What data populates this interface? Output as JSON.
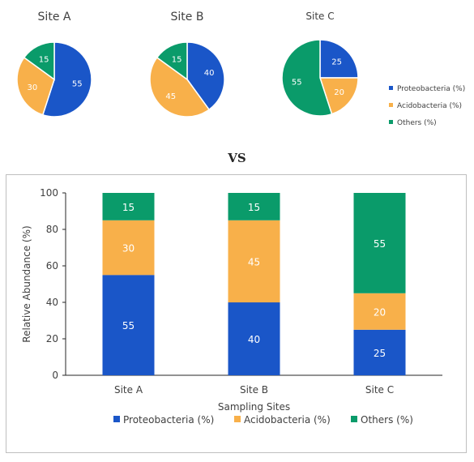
{
  "chart_data": [
    {
      "type": "pie",
      "title": "Site A",
      "labels": [
        "Proteobacteria (%)",
        "Acidobacteria (%)",
        "Others (%)"
      ],
      "values": [
        55,
        30,
        15
      ]
    },
    {
      "type": "pie",
      "title": "Site B",
      "labels": [
        "Proteobacteria (%)",
        "Acidobacteria (%)",
        "Others (%)"
      ],
      "values": [
        40,
        45,
        15
      ]
    },
    {
      "type": "pie",
      "title": "Site C",
      "labels": [
        "Proteobacteria (%)",
        "Acidobacteria (%)",
        "Others (%)"
      ],
      "values": [
        25,
        20,
        55
      ],
      "legend": [
        "Proteobacteria (%)",
        "Acidobacteria (%)",
        "Others (%)"
      ],
      "legend_position": "right"
    },
    {
      "type": "bar",
      "stacked": true,
      "categories": [
        "Site A",
        "Site B",
        "Site C"
      ],
      "series": [
        {
          "name": "Proteobacteria (%)",
          "values": [
            55,
            40,
            25
          ]
        },
        {
          "name": "Acidobacteria (%)",
          "values": [
            30,
            45,
            20
          ]
        },
        {
          "name": "Others (%)",
          "values": [
            15,
            15,
            55
          ]
        }
      ],
      "xlabel": "Sampling Sites",
      "ylabel": "Relative Abundance (%)",
      "ylim": [
        0,
        100
      ],
      "yticks": [
        0,
        20,
        40,
        60,
        80,
        100
      ],
      "grid": false,
      "legend_position": "bottom"
    }
  ],
  "separator_text": "VS",
  "colors": {
    "Proteobacteria (%)": "#1a56c8",
    "Acidobacteria (%)": "#f8b04a",
    "Others (%)": "#0a9b6a"
  }
}
